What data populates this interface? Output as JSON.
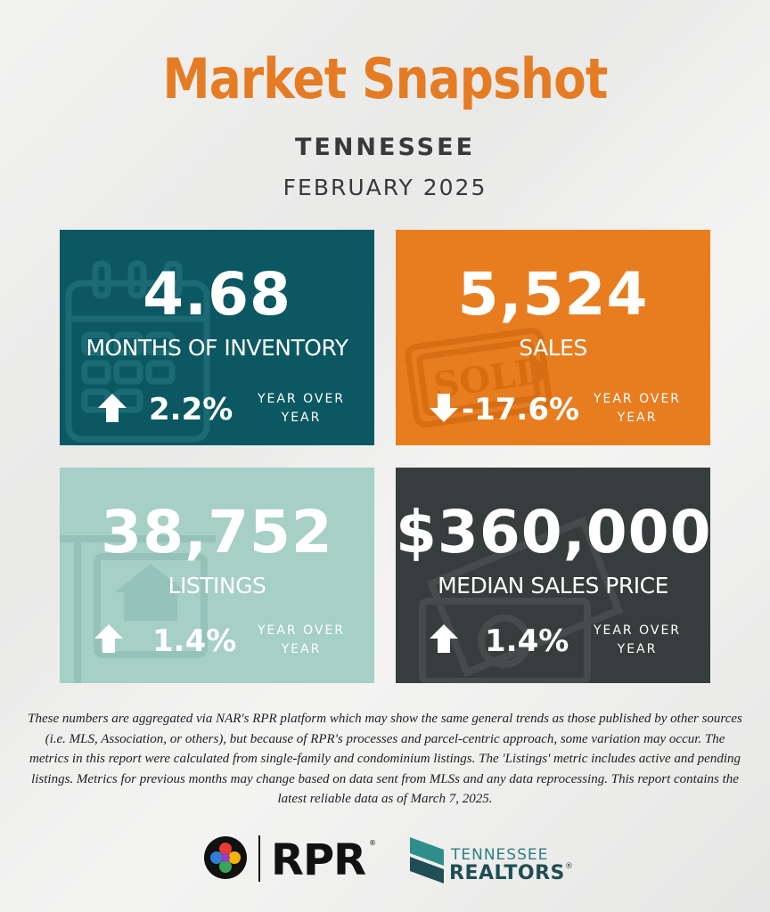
{
  "header": {
    "title": "Market Snapshot",
    "state": "TENNESSEE",
    "period": "FEBRUARY 2025"
  },
  "cards": [
    {
      "value": "4.68",
      "label": "MONTHS OF INVENTORY",
      "change": "2.2%",
      "direction": "up",
      "yoy": "YEAR OVER YEAR",
      "color": "#0b5862",
      "icon": "calendar-icon"
    },
    {
      "value": "5,524",
      "label": "SALES",
      "change": "-17.6%",
      "direction": "down",
      "yoy": "YEAR OVER YEAR",
      "color": "#e87d20",
      "icon": "sold-stamp-icon"
    },
    {
      "value": "38,752",
      "label": "LISTINGS",
      "change": "1.4%",
      "direction": "up",
      "yoy": "YEAR OVER YEAR",
      "color": "#a6cfc6",
      "icon": "house-sign-icon"
    },
    {
      "value": "$360,000",
      "label": "MEDIAN SALES PRICE",
      "change": "1.4%",
      "direction": "up",
      "yoy": "YEAR OVER YEAR",
      "color": "#373c3c",
      "icon": "dollar-bills-icon"
    }
  ],
  "disclaimer": "These numbers are aggregated via NAR's RPR platform which may show the same general trends as those published by other sources (i.e. MLS, Association, or others), but because of RPR's processes and parcel-centric approach, some variation may occur. The metrics in this report were calculated from single-family and condominium listings. The 'Listings' metric includes active and pending listings. Metrics for previous months may change based on data sent from MLSs and any data reprocessing. This report contains the latest reliable data as of March 7, 2025.",
  "logos": {
    "rpr": "RPR",
    "rpr_mark": "®",
    "tn_top": "TENNESSEE",
    "tn_bottom": "REALTORS",
    "tn_mark": "®"
  }
}
